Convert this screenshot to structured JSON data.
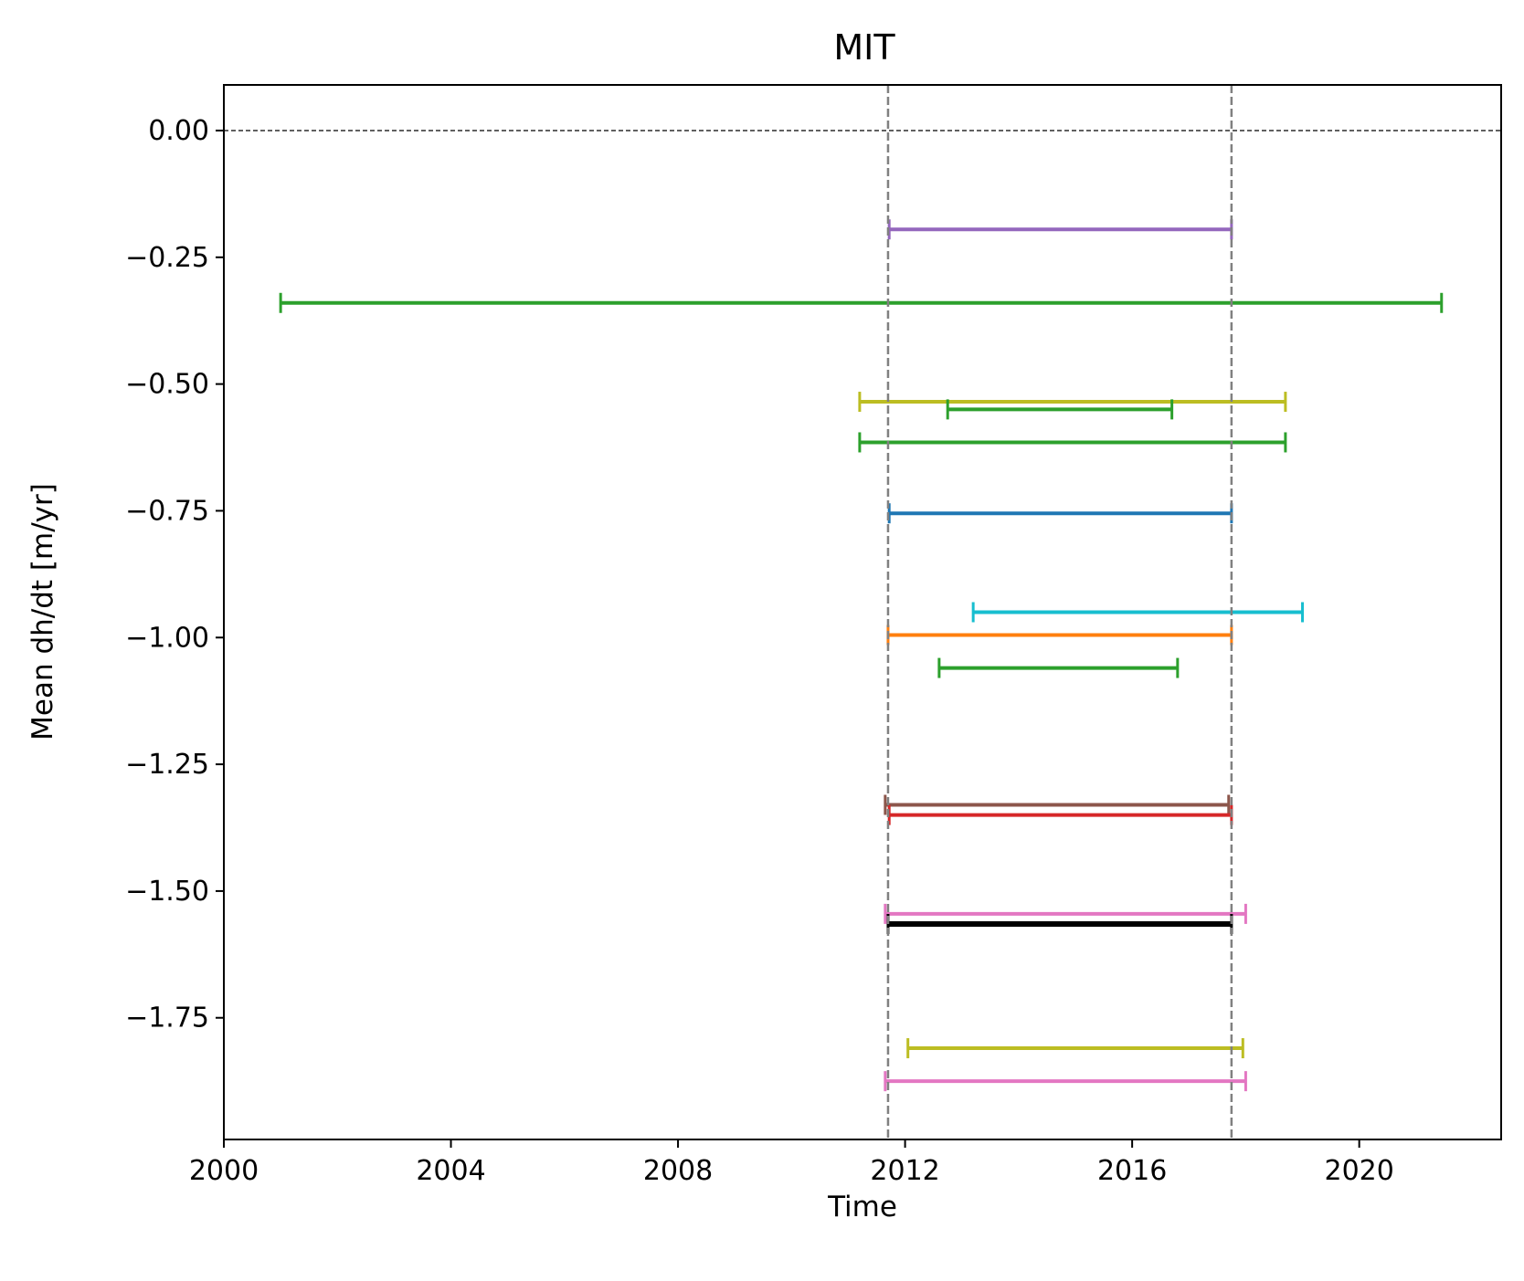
{
  "chart_data": {
    "type": "errorbar-intervals",
    "title": "MIT",
    "xlabel": "Time",
    "ylabel": "Mean dh/dt [m/yr]",
    "xlim": [
      2000,
      2022.5
    ],
    "ylim": [
      -1.99,
      0.09
    ],
    "xticks": [
      2000,
      2004,
      2008,
      2012,
      2016,
      2020
    ],
    "yticks": [
      0.0,
      -0.25,
      -0.5,
      -0.75,
      -1.0,
      -1.25,
      -1.5,
      -1.75
    ],
    "ytick_labels": [
      "0.00",
      "−0.25",
      "−0.50",
      "−0.75",
      "−1.00",
      "−1.25",
      "−1.50",
      "−1.75"
    ],
    "grid": false,
    "reference_lines": {
      "horizontal_zero": {
        "y": 0.0,
        "style": "dashed",
        "color": "#000000"
      },
      "vertical": [
        {
          "x": 2011.7,
          "style": "dashed",
          "color": "#808080"
        },
        {
          "x": 2017.75,
          "style": "dashed",
          "color": "#808080"
        }
      ]
    },
    "series": [
      {
        "x_start": 2011.72,
        "x_end": 2017.75,
        "y": -0.195,
        "color": "#9467bd"
      },
      {
        "x_start": 2001.0,
        "x_end": 2021.45,
        "y": -0.34,
        "color": "#2ca02c"
      },
      {
        "x_start": 2011.2,
        "x_end": 2018.7,
        "y": -0.535,
        "color": "#bcbd22"
      },
      {
        "x_start": 2012.75,
        "x_end": 2016.7,
        "y": -0.55,
        "color": "#2ca02c"
      },
      {
        "x_start": 2011.2,
        "x_end": 2018.7,
        "y": -0.615,
        "color": "#2ca02c"
      },
      {
        "x_start": 2011.72,
        "x_end": 2017.75,
        "y": -0.755,
        "color": "#1f77b4"
      },
      {
        "x_start": 2013.2,
        "x_end": 2019.0,
        "y": -0.95,
        "color": "#17becf"
      },
      {
        "x_start": 2011.7,
        "x_end": 2017.75,
        "y": -0.995,
        "color": "#ff7f0e"
      },
      {
        "x_start": 2012.6,
        "x_end": 2016.8,
        "y": -1.06,
        "color": "#2ca02c"
      },
      {
        "x_start": 2011.65,
        "x_end": 2017.7,
        "y": -1.33,
        "color": "#8c564b"
      },
      {
        "x_start": 2011.72,
        "x_end": 2017.75,
        "y": -1.35,
        "color": "#d62728"
      },
      {
        "x_start": 2011.65,
        "x_end": 2018.0,
        "y": -1.545,
        "color": "#e377c2"
      },
      {
        "x_start": 2011.7,
        "x_end": 2017.75,
        "y": -1.565,
        "color": "#000000"
      },
      {
        "x_start": 2012.05,
        "x_end": 2017.95,
        "y": -1.81,
        "color": "#bcbd22"
      },
      {
        "x_start": 2011.65,
        "x_end": 2018.0,
        "y": -1.875,
        "color": "#e377c2"
      }
    ]
  }
}
